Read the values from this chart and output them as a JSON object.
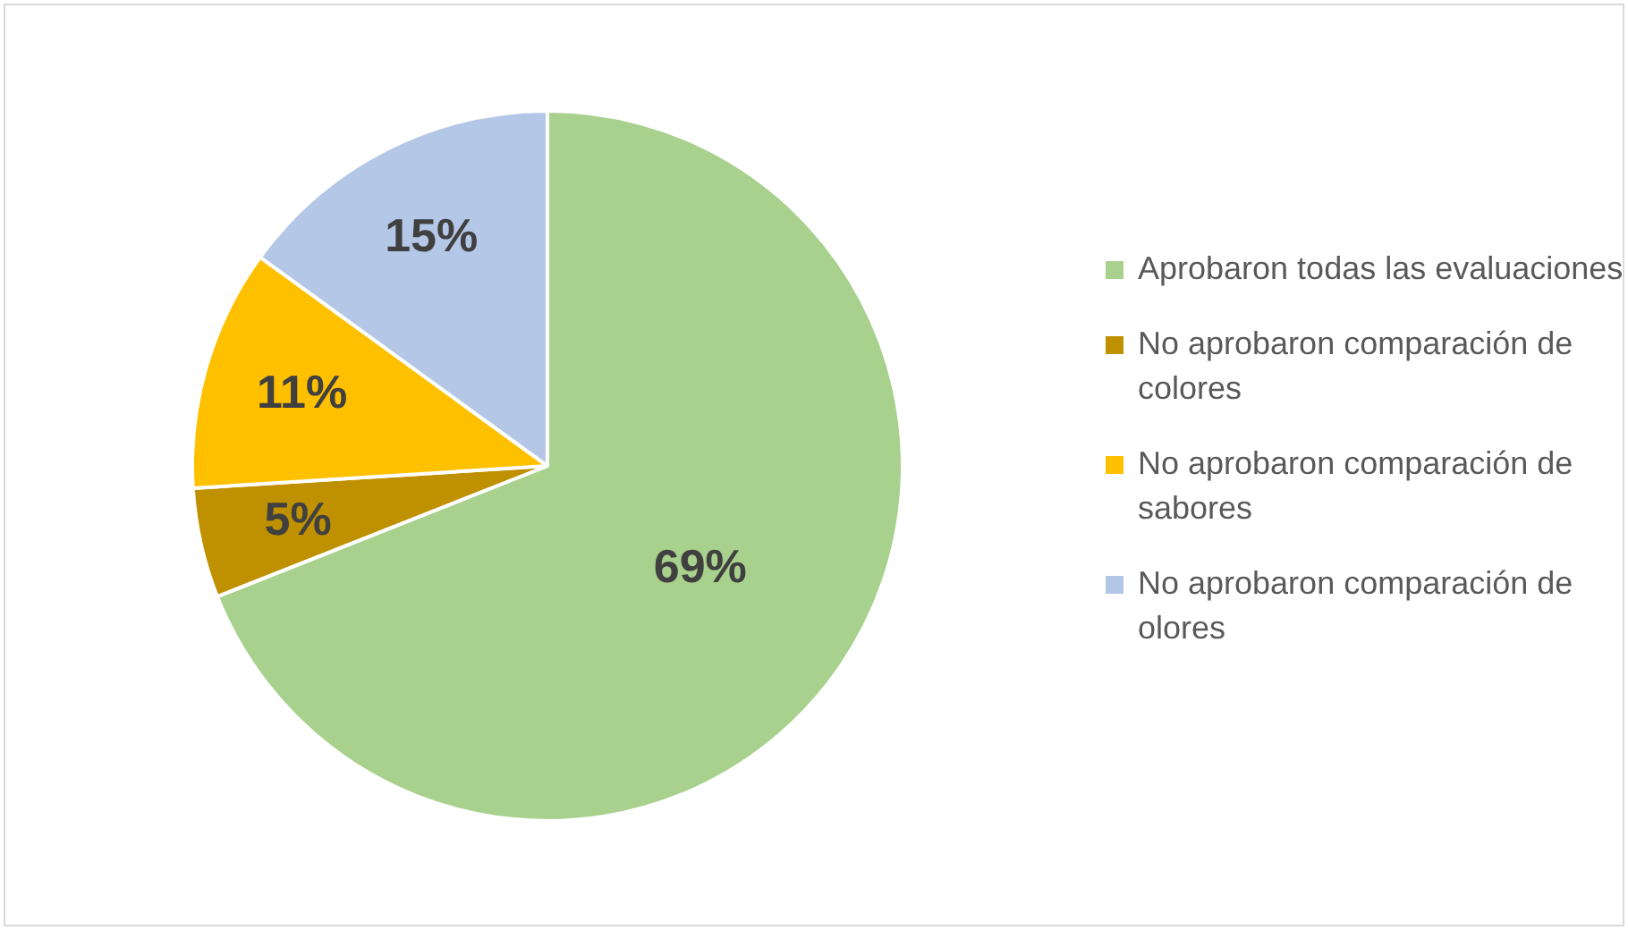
{
  "chart_data": {
    "type": "pie",
    "categories": [
      "Aprobaron todas las evaluaciones",
      "No aprobaron comparación de colores",
      "No aprobaron comparación de sabores",
      "No aprobaron comparación de olores"
    ],
    "values": [
      69,
      5,
      11,
      15
    ],
    "colors": [
      "#a9d18e",
      "#bf9000",
      "#ffc000",
      "#b4c7e7"
    ],
    "value_labels": [
      "69%",
      "5%",
      "11%",
      "15%"
    ],
    "legend": "right"
  }
}
